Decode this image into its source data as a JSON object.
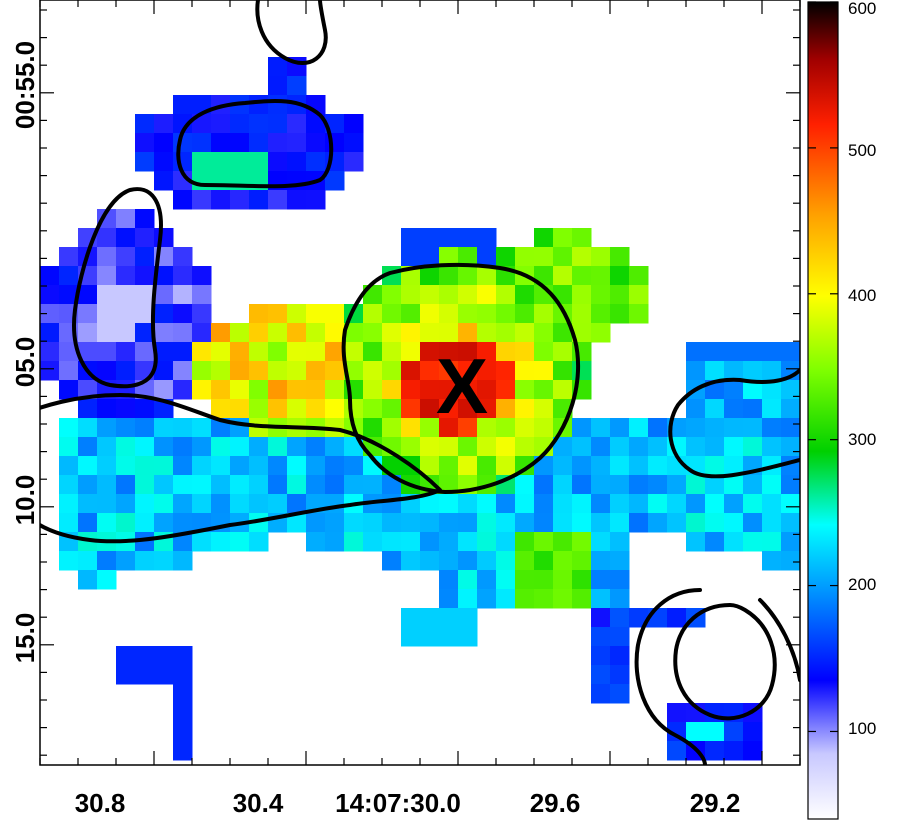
{
  "chart_data": {
    "type": "heatmap",
    "title": "",
    "xlabel": "",
    "ylabel": "",
    "x_tick_labels": [
      "30.8",
      "30.4",
      "14:07:30.0",
      "29.6",
      "29.2"
    ],
    "y_tick_labels": [
      "00:55.0",
      "05.0",
      "10.0",
      "15.0"
    ],
    "colorbar": {
      "min": 40,
      "max": 600,
      "tick_labels": [
        "100",
        "200",
        "300",
        "400",
        "500",
        "600"
      ],
      "tick_values": [
        100,
        200,
        300,
        400,
        500,
        600
      ],
      "colormap": "rainbow (white-blue-cyan-green-yellow-orange-red-black)"
    },
    "marker": {
      "symbol": "X",
      "label": "X"
    },
    "description_grid": {
      "note": "Pixel map values in colorbar units; rows top-to-bottom, columns left-to-right; null = blank (white)",
      "rows": 20,
      "cols": 20
    },
    "contours": "black contour lines overlay",
    "grid": false
  },
  "colors": {
    "background": "#ffffff",
    "contour": "#000000"
  }
}
